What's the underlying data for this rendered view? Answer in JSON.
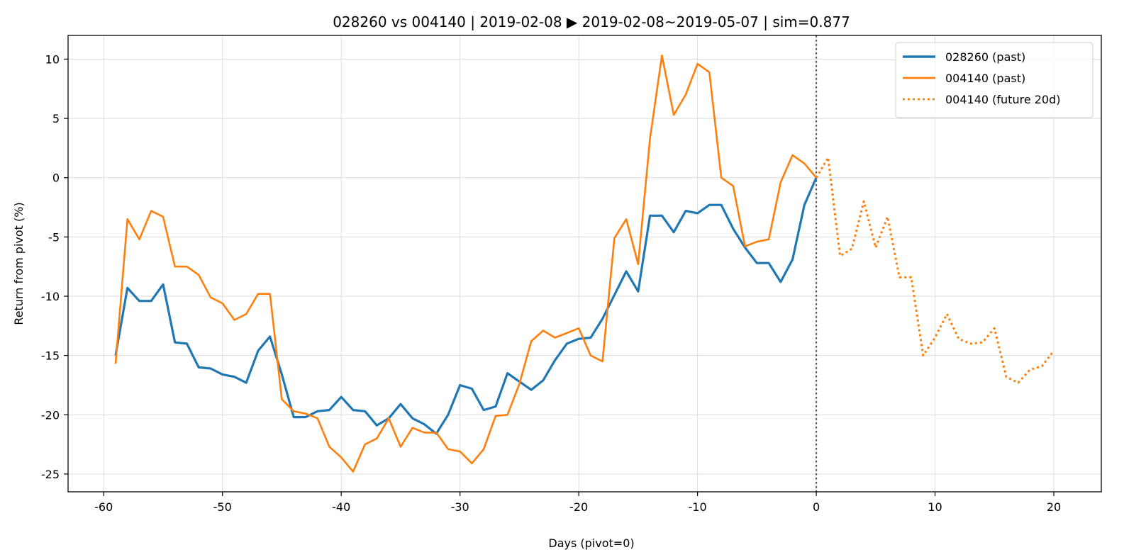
{
  "chart_data": {
    "type": "line",
    "title": "028260 vs 004140 | 2019-02-08 ▶ 2019-02-08~2019-05-07 | sim=0.877",
    "xlabel": "Days (pivot=0)",
    "ylabel": "Return from pivot (%)",
    "xlim": [
      -63,
      24
    ],
    "ylim": [
      -26.5,
      12
    ],
    "xticks": [
      -60,
      -50,
      -40,
      -30,
      -20,
      -10,
      0,
      10,
      20
    ],
    "yticks": [
      -25,
      -20,
      -15,
      -10,
      -5,
      0,
      5,
      10
    ],
    "xtick_labels": [
      "-60",
      "-50",
      "-40",
      "-30",
      "-20",
      "-10",
      "0",
      "10",
      "20"
    ],
    "ytick_labels": [
      "-25",
      "-20",
      "-15",
      "-10",
      "-5",
      "0",
      "5",
      "10"
    ],
    "grid": true,
    "legend_position": "top-right",
    "pivot_line": {
      "x": 0,
      "style": "dotted",
      "color": "#555555"
    },
    "series": [
      {
        "name": "028260 (past)",
        "color": "#1f77b4",
        "style": "solid",
        "x": [
          -59,
          -58,
          -57,
          -56,
          -55,
          -54,
          -53,
          -52,
          -51,
          -50,
          -49,
          -48,
          -47,
          -46,
          -45,
          -44,
          -43,
          -42,
          -41,
          -40,
          -39,
          -38,
          -37,
          -36,
          -35,
          -34,
          -33,
          -32,
          -31,
          -30,
          -29,
          -28,
          -27,
          -26,
          -25,
          -24,
          -23,
          -22,
          -21,
          -20,
          -19,
          -18,
          -17,
          -16,
          -15,
          -14,
          -13,
          -12,
          -11,
          -10,
          -9,
          -8,
          -7,
          -6,
          -5,
          -4,
          -3,
          -2,
          -1,
          0
        ],
        "values": [
          -15.0,
          -9.3,
          -10.4,
          -10.4,
          -9.0,
          -13.9,
          -14.0,
          -16.0,
          -16.1,
          -16.6,
          -16.8,
          -17.3,
          -14.6,
          -13.4,
          -16.6,
          -20.2,
          -20.2,
          -19.7,
          -19.6,
          -18.5,
          -19.6,
          -19.7,
          -20.9,
          -20.3,
          -19.1,
          -20.3,
          -20.8,
          -21.6,
          -20.0,
          -17.5,
          -17.8,
          -19.6,
          -19.3,
          -16.5,
          -17.2,
          -17.9,
          -17.1,
          -15.4,
          -14.0,
          -13.6,
          -13.5,
          -11.9,
          -9.9,
          -7.9,
          -9.6,
          -3.2,
          -3.2,
          -4.6,
          -2.8,
          -3.0,
          -2.3,
          -2.3,
          -4.3,
          -5.9,
          -7.2,
          -7.2,
          -8.8,
          -6.9,
          -2.3,
          0.0
        ]
      },
      {
        "name": "004140 (past)",
        "color": "#ff7f0e",
        "style": "solid",
        "x": [
          -59,
          -58,
          -57,
          -56,
          -55,
          -54,
          -53,
          -52,
          -51,
          -50,
          -49,
          -48,
          -47,
          -46,
          -45,
          -44,
          -43,
          -42,
          -41,
          -40,
          -39,
          -38,
          -37,
          -36,
          -35,
          -34,
          -33,
          -32,
          -31,
          -30,
          -29,
          -28,
          -27,
          -26,
          -25,
          -24,
          -23,
          -22,
          -21,
          -20,
          -19,
          -18,
          -17,
          -16,
          -15,
          -14,
          -13,
          -12,
          -11,
          -10,
          -9,
          -8,
          -7,
          -6,
          -5,
          -4,
          -3,
          -2,
          -1,
          0
        ],
        "values": [
          -15.7,
          -3.5,
          -5.2,
          -2.8,
          -3.3,
          -7.5,
          -7.5,
          -8.2,
          -10.1,
          -10.6,
          -12.0,
          -11.5,
          -9.8,
          -9.8,
          -18.7,
          -19.7,
          -19.9,
          -20.3,
          -22.7,
          -23.6,
          -24.8,
          -22.5,
          -22.0,
          -20.3,
          -22.7,
          -21.1,
          -21.5,
          -21.5,
          -22.9,
          -23.1,
          -24.1,
          -22.9,
          -20.1,
          -20.0,
          -17.4,
          -13.8,
          -12.9,
          -13.5,
          -13.1,
          -12.7,
          -15.0,
          -15.5,
          -5.1,
          -3.5,
          -7.3,
          3.3,
          10.3,
          5.3,
          7.0,
          9.6,
          8.9,
          0.0,
          -0.7,
          -5.8,
          -5.4,
          -5.2,
          -0.4,
          1.9,
          1.2,
          0.0
        ]
      },
      {
        "name": "004140 (future 20d)",
        "color": "#ff7f0e",
        "style": "dotted",
        "x": [
          0,
          1,
          2,
          3,
          4,
          5,
          6,
          7,
          8,
          9,
          10,
          11,
          12,
          13,
          14,
          15,
          16,
          17,
          18,
          19,
          20
        ],
        "values": [
          0.0,
          1.7,
          -6.6,
          -6.0,
          -2.0,
          -5.9,
          -3.3,
          -8.4,
          -8.4,
          -15.0,
          -13.5,
          -11.5,
          -13.6,
          -14.0,
          -13.9,
          -12.7,
          -16.8,
          -17.3,
          -16.2,
          -15.9,
          -14.6
        ]
      }
    ]
  }
}
